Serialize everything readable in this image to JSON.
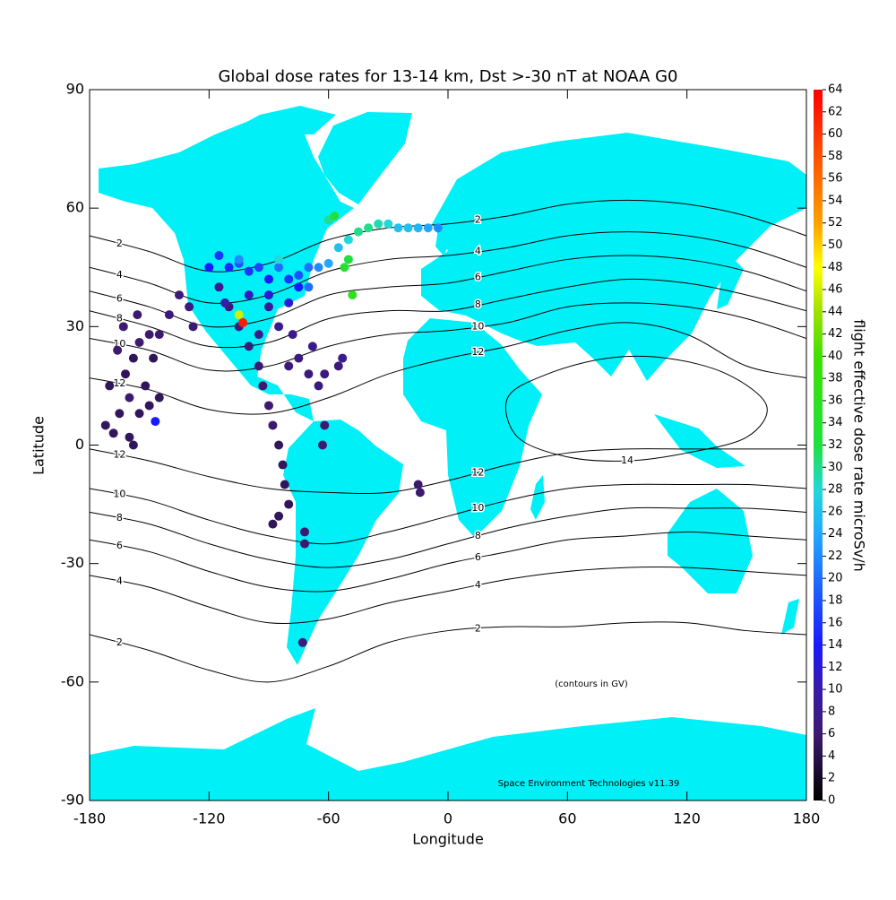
{
  "chart_data": {
    "type": "scatter",
    "title": "Global dose rates for 13-14 km, Dst >-30 nT at NOAA G0",
    "x_label": "Longitude",
    "y_label": "Latitude",
    "colorbar_label": "flight effective dose rate microSv/h",
    "annotations": [
      "(contours in GV)",
      "Space Environment Technologies v11.39"
    ],
    "xlim": [
      -180,
      180
    ],
    "ylim": [
      -90,
      90
    ],
    "xticks": [
      -180,
      -120,
      -60,
      0,
      60,
      120,
      180
    ],
    "yticks": [
      -90,
      -60,
      -30,
      0,
      30,
      60,
      90
    ],
    "clim": [
      0,
      64
    ],
    "cticks": [
      0,
      2,
      4,
      6,
      8,
      10,
      12,
      14,
      16,
      18,
      20,
      22,
      24,
      26,
      28,
      30,
      32,
      34,
      36,
      38,
      40,
      42,
      44,
      46,
      48,
      50,
      52,
      54,
      56,
      58,
      60,
      62,
      64
    ],
    "colormap": [
      {
        "value": 0,
        "color": "#000000"
      },
      {
        "value": 6,
        "color": "#3c1a6e"
      },
      {
        "value": 10,
        "color": "#3a1aa8"
      },
      {
        "value": 14,
        "color": "#1a1aff"
      },
      {
        "value": 20,
        "color": "#1e6eff"
      },
      {
        "value": 24,
        "color": "#22a8ff"
      },
      {
        "value": 28,
        "color": "#22d8d8"
      },
      {
        "value": 32,
        "color": "#20e040"
      },
      {
        "value": 40,
        "color": "#40e000"
      },
      {
        "value": 44,
        "color": "#a0e000"
      },
      {
        "value": 48,
        "color": "#ffff00"
      },
      {
        "value": 52,
        "color": "#ffa000"
      },
      {
        "value": 58,
        "color": "#ff5000"
      },
      {
        "value": 64,
        "color": "#ff0000"
      }
    ],
    "land_color": "#00f0f8",
    "contour_color": "#000000",
    "contour_lon": [
      -180,
      -150,
      -120,
      -90,
      -60,
      -30,
      0,
      30,
      60,
      90,
      120,
      150,
      180
    ],
    "contours": [
      {
        "level": 2,
        "lat": [
          53,
          49,
          44,
          46,
          52,
          55,
          56,
          58,
          61,
          62,
          61,
          58,
          53
        ]
      },
      {
        "level": 4,
        "lat": [
          45,
          41,
          36,
          38,
          44,
          47,
          48,
          50,
          53,
          54,
          53,
          50,
          45
        ]
      },
      {
        "level": 6,
        "lat": [
          39,
          35,
          30,
          32,
          38,
          40,
          41,
          44,
          47,
          48,
          47,
          44,
          39
        ]
      },
      {
        "level": 8,
        "lat": [
          34,
          30,
          25,
          26,
          32,
          34,
          34,
          37,
          40,
          42,
          41,
          38,
          34
        ]
      },
      {
        "level": 10,
        "lat": [
          27,
          24,
          19,
          20,
          25,
          28,
          29,
          31,
          35,
          36,
          35,
          32,
          27
        ]
      },
      {
        "level": 12,
        "lat": [
          17,
          14,
          9,
          8,
          12,
          18,
          22,
          25,
          29,
          31,
          28,
          20,
          17
        ]
      },
      {
        "level": 12,
        "lat": [
          -1,
          -4,
          -8,
          -11,
          -12,
          -12,
          -9,
          -5,
          -2,
          -1,
          -1,
          -1,
          -1
        ]
      },
      {
        "level": 10,
        "lat": [
          -11,
          -14,
          -19,
          -23,
          -25,
          -22,
          -18,
          -14,
          -11,
          -10,
          -10,
          -10,
          -11
        ]
      },
      {
        "level": 8,
        "lat": [
          -17,
          -20,
          -25,
          -29,
          -31,
          -29,
          -25,
          -21,
          -18,
          -16,
          -16,
          -16,
          -17
        ]
      },
      {
        "level": 6,
        "lat": [
          -24,
          -27,
          -32,
          -36,
          -37,
          -34,
          -30,
          -27,
          -24,
          -23,
          -22,
          -23,
          -24
        ]
      },
      {
        "level": 4,
        "lat": [
          -33,
          -36,
          -41,
          -45,
          -44,
          -40,
          -37,
          -34,
          -32,
          -31,
          -31,
          -32,
          -33
        ]
      },
      {
        "level": 2,
        "lat": [
          -48,
          -52,
          -57,
          -60,
          -56,
          -50,
          -47,
          -46,
          -46,
          -45,
          -45,
          -47,
          -48
        ]
      }
    ],
    "closed_contours": [
      {
        "level": 14,
        "lon": [
          30,
          50,
          80,
          110,
          140,
          160,
          150,
          120,
          90,
          60,
          35
        ],
        "lat": [
          12,
          18,
          22,
          22,
          18,
          10,
          2,
          -2,
          -4,
          -3,
          2
        ]
      }
    ],
    "x": [
      -172,
      -168,
      -165,
      -160,
      -162,
      -158,
      -155,
      -150,
      -148,
      -152,
      -170,
      -166,
      -163,
      -156,
      -145,
      -140,
      -135,
      -130,
      -128,
      -160,
      -155,
      -150,
      -145,
      -158,
      -147,
      -115,
      -110,
      -105,
      -100,
      -95,
      -93,
      -90,
      -88,
      -85,
      -83,
      -82,
      -80,
      -85,
      -88,
      -72,
      -72,
      -73,
      -80,
      -75,
      -70,
      -65,
      -68,
      -78,
      -85,
      -90,
      -95,
      -62,
      -55,
      -53,
      -62,
      -63,
      -15,
      -14,
      -120,
      -115,
      -110,
      -105,
      -100,
      -95,
      -90,
      -85,
      -80,
      -75,
      -70,
      -65,
      -60,
      -100,
      -90,
      -80,
      -112,
      -75,
      -55,
      -50,
      -45,
      -40,
      -35,
      -30,
      -25,
      -20,
      -15,
      -10,
      -5,
      -50,
      -52,
      -48,
      -60,
      -57,
      -105,
      -85,
      -70,
      -103,
      -105
    ],
    "y": [
      5,
      3,
      8,
      12,
      18,
      22,
      26,
      28,
      22,
      15,
      15,
      24,
      30,
      33,
      28,
      33,
      38,
      35,
      30,
      2,
      8,
      10,
      12,
      0,
      6,
      40,
      35,
      30,
      25,
      20,
      15,
      10,
      5,
      0,
      -5,
      -10,
      -15,
      -18,
      -20,
      -22,
      -25,
      -50,
      20,
      22,
      18,
      15,
      25,
      28,
      30,
      35,
      28,
      18,
      20,
      22,
      5,
      0,
      -10,
      -12,
      45,
      48,
      45,
      46,
      44,
      45,
      42,
      45,
      42,
      43,
      45,
      45,
      46,
      38,
      38,
      36,
      36,
      40,
      50,
      52,
      54,
      55,
      56,
      56,
      55,
      55,
      55,
      55,
      55,
      47,
      45,
      38,
      57,
      58,
      47,
      47,
      40,
      31,
      33
    ],
    "values": [
      5,
      5,
      5,
      6,
      5,
      5,
      6,
      6,
      5,
      5,
      5,
      6,
      6,
      6,
      6,
      7,
      7,
      7,
      6,
      5,
      5,
      5,
      5,
      5,
      14,
      8,
      7,
      7,
      7,
      6,
      6,
      6,
      6,
      5,
      5,
      5,
      5,
      5,
      5,
      6,
      6,
      7,
      7,
      7,
      7,
      7,
      8,
      8,
      8,
      9,
      8,
      7,
      7,
      8,
      6,
      6,
      6,
      6,
      14,
      16,
      15,
      18,
      16,
      17,
      14,
      20,
      16,
      18,
      20,
      22,
      24,
      11,
      12,
      12,
      10,
      14,
      26,
      28,
      30,
      30,
      29,
      28,
      26,
      26,
      25,
      24,
      22,
      32,
      34,
      36,
      30,
      32,
      22,
      28,
      20,
      62,
      46
    ]
  }
}
